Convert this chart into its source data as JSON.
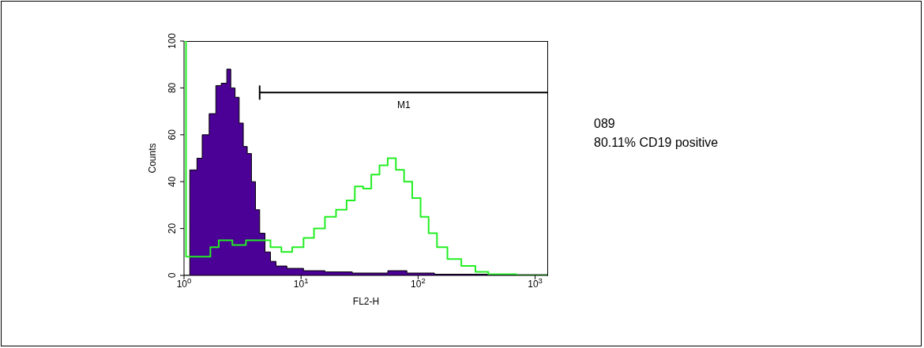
{
  "chart_data": {
    "type": "area",
    "xlabel": "FL2-H",
    "ylabel": "Counts",
    "log": "x",
    "xlim": [
      1,
      1290
    ],
    "ylim": [
      0,
      100
    ],
    "xticks": [
      {
        "value": 1,
        "label": "10$^{0}$"
      },
      {
        "value": 10,
        "label": "10$^{1}$"
      },
      {
        "value": 100,
        "label": "10$^{2}$"
      },
      {
        "value": 1000,
        "label": "10$^{3}$"
      }
    ],
    "yticks": [
      0,
      20,
      40,
      60,
      80,
      100
    ],
    "series": [
      {
        "color": "#4b0096",
        "x": [
          1,
          1.04,
          1.12,
          1.29,
          1.43,
          1.64,
          1.87,
          2.08,
          2.32,
          2.51,
          2.73,
          2.96,
          3.21,
          3.47,
          3.77,
          4.08,
          4.43,
          4.92,
          5.48,
          6.11,
          7.57,
          10.5,
          16,
          27.4,
          55.1,
          80.2,
          138,
          234,
          692,
          1290
        ],
        "values": [
          0,
          0,
          45,
          50,
          60,
          69,
          81,
          82,
          88,
          80,
          76,
          65,
          55,
          52,
          40,
          28,
          18,
          10,
          6,
          4,
          3,
          2,
          1.5,
          1,
          2,
          1,
          0.5,
          0.5,
          0.3,
          0
        ]
      },
      {
        "type": "step",
        "color": "#22ee22",
        "x": [
          1,
          1.04,
          1.29,
          1.68,
          1.98,
          2.59,
          3.38,
          4.43,
          5.48,
          6.79,
          8.41,
          10.5,
          12.9,
          16,
          19.9,
          24.5,
          28.8,
          33.9,
          39.8,
          46.8,
          55,
          64.6,
          75.9,
          89.1,
          105,
          123,
          145,
          178,
          234,
          309,
          398,
          692,
          1290
        ],
        "values": [
          100,
          8,
          8,
          12,
          15,
          13,
          15,
          15,
          12,
          10,
          12,
          16,
          20,
          25,
          28,
          32,
          38,
          37,
          43,
          47,
          50,
          45,
          40,
          33,
          25,
          18,
          12,
          7,
          4,
          1.5,
          0.5,
          0,
          0
        ]
      },
      {
        "type": "line",
        "name": "M1",
        "color": "#000000",
        "x": [
          4.43,
          1290
        ],
        "values": [
          78,
          78
        ]
      }
    ],
    "annotations": [
      "089",
      "80.11% CD19 positive"
    ]
  }
}
